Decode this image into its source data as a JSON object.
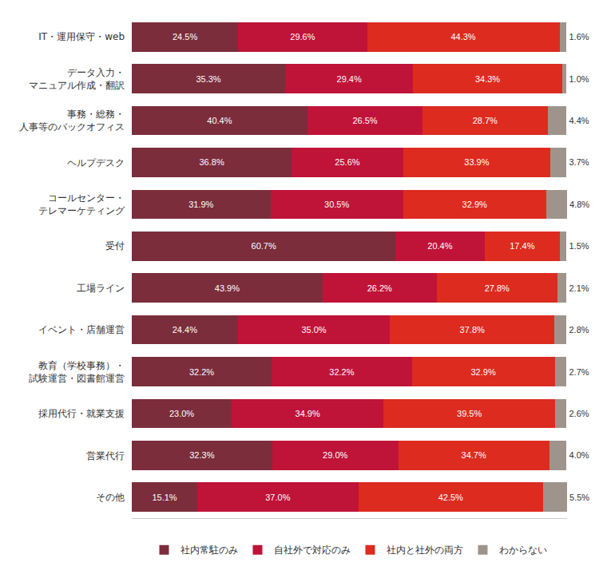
{
  "chart_data": {
    "type": "bar",
    "orientation": "horizontal",
    "stacked": true,
    "data_labels": true,
    "tick_labels": "y",
    "grid": false,
    "legend": "bottom",
    "xlim": [
      0,
      100.1
    ],
    "categories": [
      "IT・運用保守・web",
      "データ入力・\nマニュアル作成・翻訳",
      "事務・総務・\n人事等のバックオフィス",
      "ヘルプデスク",
      "コールセンター・\nテレマーケティング",
      "受付",
      "工場ライン",
      "イベント・店舗運営",
      "教育（学校事務）・\n試験運営・図書館運営",
      "採用代行・就業支援",
      "営業代行",
      "その他"
    ],
    "series": [
      {
        "name": "社内常駐のみ",
        "color": "#7b2d3b",
        "values": [
          24.5,
          35.3,
          40.4,
          36.8,
          31.9,
          60.7,
          43.9,
          24.4,
          32.2,
          23.0,
          32.3,
          15.1
        ],
        "value_labels": [
          "24.5%",
          "35.3%",
          "40.4%",
          "36.8%",
          "31.9%",
          "60.7%",
          "43.9%",
          "24.4%",
          "32.2%",
          "23.0%",
          "32.3%",
          "15.1%"
        ]
      },
      {
        "name": "自社外で対応のみ",
        "color": "#c01338",
        "values": [
          29.6,
          29.4,
          26.5,
          25.6,
          30.5,
          20.4,
          26.2,
          35.0,
          32.2,
          34.9,
          29.0,
          37.0
        ],
        "value_labels": [
          "29.6%",
          "29.4%",
          "26.5%",
          "25.6%",
          "30.5%",
          "20.4%",
          "26.2%",
          "35.0%",
          "32.2%",
          "34.9%",
          "29.0%",
          "37.0%"
        ]
      },
      {
        "name": "社内と社外の両方",
        "color": "#dd2b1f",
        "values": [
          44.3,
          34.3,
          28.7,
          33.9,
          32.9,
          17.4,
          27.8,
          37.8,
          32.9,
          39.5,
          34.7,
          42.5
        ],
        "value_labels": [
          "44.3%",
          "34.3%",
          "28.7%",
          "33.9%",
          "32.9%",
          "17.4%",
          "27.8%",
          "37.8%",
          "32.9%",
          "39.5%",
          "34.7%",
          "42.5%"
        ]
      },
      {
        "name": "わからない",
        "color": "#9e948c",
        "values": [
          1.6,
          1.0,
          4.4,
          3.7,
          4.8,
          1.5,
          2.1,
          2.8,
          2.7,
          2.6,
          4.0,
          5.5
        ],
        "value_labels": [
          "1.6%",
          "1.0%",
          "4.4%",
          "3.7%",
          "4.8%",
          "1.5%",
          "2.1%",
          "2.8%",
          "2.7%",
          "2.6%",
          "4.0%",
          "5.5%"
        ]
      }
    ]
  }
}
